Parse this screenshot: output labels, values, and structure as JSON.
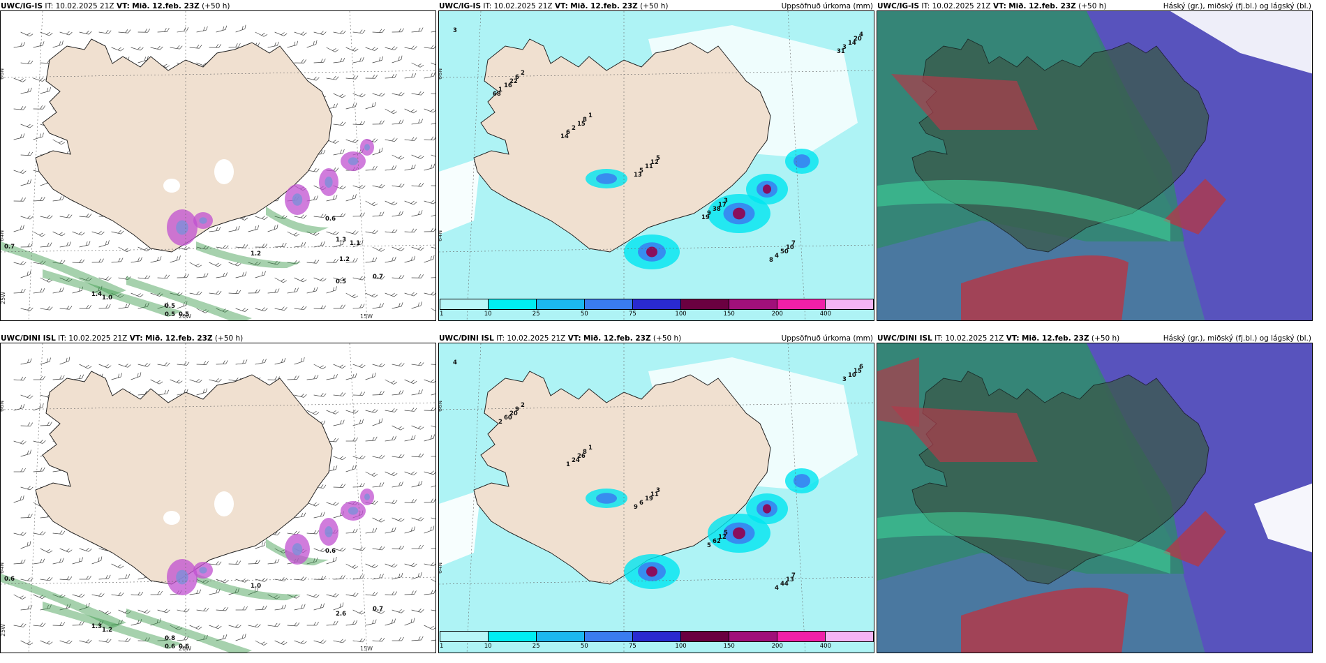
{
  "colors": {
    "land": "#f0e0d0",
    "ocean_light": "#cdeff5",
    "precip_light": "#aef3f5",
    "precip_cyan": "#00e5f0",
    "cloud_high_red": "#b03a4a",
    "cloud_mid_green": "#2f8a6a",
    "cloud_low_blue": "#5a4fc0",
    "snow_green": "#3a9a4a",
    "snow_purple": "#c050d0"
  },
  "rows": [
    {
      "panels": [
        {
          "model": "UWC/IG-IS",
          "it": "IT: 10.02.2025 21Z",
          "vt_prefix": "VT:",
          "vt": "Mið. 12.feb. 23Z",
          "lead": "(+50 h)",
          "right_label": "",
          "grid_labels": [
            "66N",
            "64N",
            "25W",
            "20W",
            "15W"
          ],
          "values": [
            "0.7",
            "0.5",
            "0.5",
            "0.5",
            "1.4",
            "1.0",
            "0.6",
            "1.2",
            "0.7",
            "0.5",
            "1.3",
            "1.1",
            "1.2"
          ]
        },
        {
          "model": "UWC/IG-IS",
          "it": "IT: 10.02.2025 21Z",
          "vt_prefix": "VT:",
          "vt": "Mið. 12.feb. 23Z",
          "lead": "(+50 h)",
          "right_label": "Uppsöfnuð úrkoma (mm)",
          "grid_labels": [
            "66N",
            "64N"
          ],
          "values": [
            "3",
            "2",
            "1",
            "5",
            "3",
            "7",
            "4",
            "6",
            "8",
            "12",
            "17",
            "10",
            "20",
            "22",
            "15",
            "11",
            "38",
            "50",
            "14",
            "16",
            "2",
            "5",
            "9",
            "4",
            "3",
            "1",
            "6",
            "13",
            "19",
            "8",
            "31",
            "68",
            "14"
          ],
          "colorbar_labels": [
            "1",
            "10",
            "25",
            "50",
            "75",
            "100",
            "150",
            "200",
            "400"
          ]
        },
        {
          "model": "UWC/IG-IS",
          "it": "IT: 10.02.2025 21Z",
          "vt_prefix": "VT:",
          "vt": "Mið. 12.feb. 23Z",
          "lead": "(+50 h)",
          "right_label": "Háský (gr.), miðský (fj.bl.) og lágský (bl.)"
        }
      ]
    },
    {
      "panels": [
        {
          "model": "UWC/DINI ISL",
          "it": "IT: 10.02.2025 21Z",
          "vt_prefix": "VT:",
          "vt": "Mið. 12.feb. 23Z",
          "lead": "(+50 h)",
          "right_label": "",
          "grid_labels": [
            "66N",
            "64N",
            "25W",
            "20W",
            "15W"
          ],
          "values": [
            "0.6",
            "0.8",
            "0.6",
            "0.6",
            "1.3",
            "1.2",
            "0.6",
            "1.0",
            "0.7",
            "2.6"
          ]
        },
        {
          "model": "UWC/DINI ISL",
          "it": "IT: 10.02.2025 21Z",
          "vt_prefix": "VT:",
          "vt": "Mið. 12.feb. 23Z",
          "lead": "(+50 h)",
          "right_label": "Uppsöfnuð úrkoma (mm)",
          "grid_labels": [
            "66N",
            "64N"
          ],
          "values": [
            "4",
            "2",
            "1",
            "3",
            "5",
            "7",
            "6",
            "9",
            "8",
            "11",
            "12",
            "13",
            "15",
            "20",
            "26",
            "19",
            "62",
            "44",
            "10",
            "60",
            "24",
            "6",
            "5",
            "4",
            "3",
            "2",
            "1",
            "9"
          ],
          "colorbar_labels": [
            "1",
            "10",
            "25",
            "50",
            "75",
            "100",
            "150",
            "200",
            "400"
          ]
        },
        {
          "model": "UWC/DINI ISL",
          "it": "IT: 10.02.2025 21Z",
          "vt_prefix": "VT:",
          "vt": "Mið. 12.feb. 23Z",
          "lead": "(+50 h)",
          "right_label": "Háský (gr.), miðský (fj.bl.) og lágský (bl.)"
        }
      ]
    }
  ]
}
